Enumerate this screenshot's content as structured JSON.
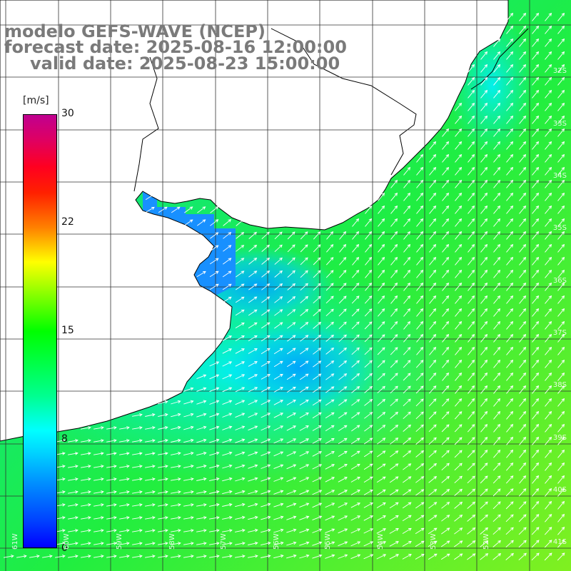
{
  "title": {
    "model": "modelo GEFS-WAVE (NCEP)",
    "forecast": "forecast date: 2025-08-16 12:00:00",
    "valid": "valid date: 2025-08-23 15:00:00"
  },
  "colorbar": {
    "unit": "[m/s]",
    "ticks": [
      "30",
      "22",
      "15",
      "8",
      "0"
    ],
    "colors": [
      "#0000ff",
      "#00ffff",
      "#00ff00",
      "#ffff00",
      "#ff0000",
      "#c00090"
    ]
  },
  "map_labels": {
    "latitudes": [
      "32S",
      "33S",
      "34S",
      "35S",
      "36S",
      "37S",
      "38S",
      "39S",
      "40S",
      "41S"
    ],
    "longitudes": [
      "61W",
      "60W",
      "59W",
      "58W",
      "57W",
      "56W",
      "55W",
      "54W",
      "53W",
      "52W"
    ]
  },
  "colors": {
    "land": "#ffffff",
    "coast": "#000000",
    "grid": "#444444",
    "arrows": "#ffffff",
    "title_text": "#7a7a7a"
  }
}
